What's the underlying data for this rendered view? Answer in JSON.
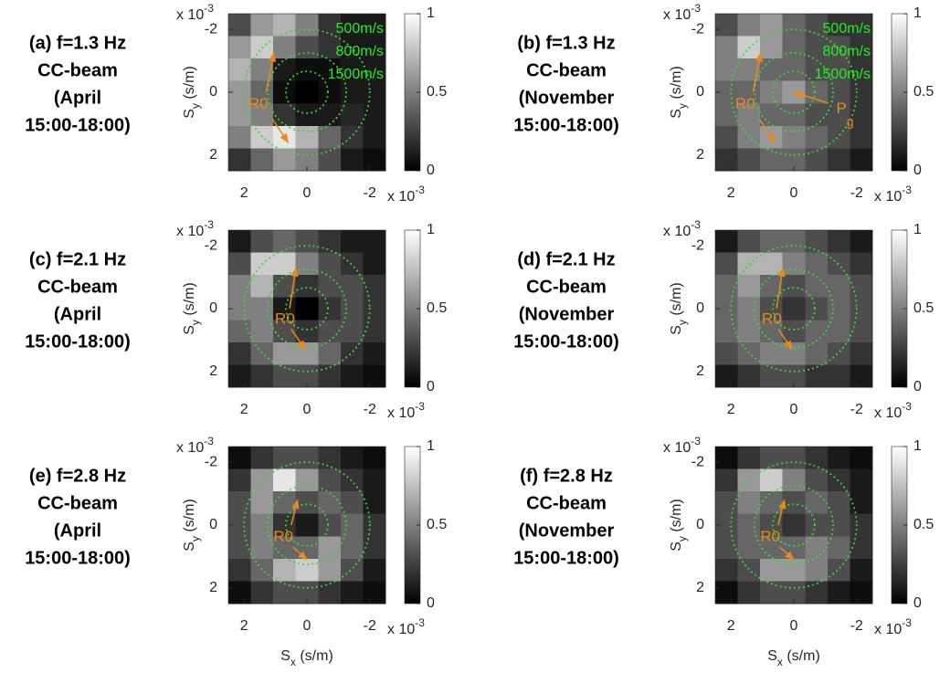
{
  "chart_data": [
    {
      "type": "heatmap",
      "title": [
        "(a) f=1.3 Hz",
        "CC-beam",
        "(April",
        "15:00-18:00)"
      ],
      "z": [
        [
          0.3,
          0.6,
          0.7,
          0.5,
          0.2,
          0.1,
          0.1
        ],
        [
          0.6,
          0.8,
          0.5,
          0.3,
          0.2,
          0.1,
          0.1
        ],
        [
          0.7,
          0.5,
          0.1,
          0.05,
          0.05,
          0.1,
          0.1
        ],
        [
          0.6,
          0.4,
          0.05,
          0.0,
          0.05,
          0.1,
          0.1
        ],
        [
          0.6,
          0.5,
          0.2,
          0.1,
          0.1,
          0.15,
          0.1
        ],
        [
          0.5,
          0.8,
          0.9,
          0.7,
          0.4,
          0.2,
          0.1
        ],
        [
          0.2,
          0.4,
          0.6,
          0.5,
          0.3,
          0.1,
          0.05
        ]
      ],
      "clim": [
        0,
        1
      ],
      "cticks": [
        0,
        0.5,
        1
      ],
      "xlim": [
        2.5,
        -2.5
      ],
      "ylim": [
        -2.5,
        2.5
      ],
      "xticks": [
        2,
        0,
        -2
      ],
      "yticks": [
        -2,
        0,
        2
      ],
      "x_exponent": [
        "x 10",
        "-3"
      ],
      "y_exponent": [
        "x 10",
        "-3"
      ],
      "ylabel": [
        "S",
        "y",
        " (s/m)"
      ],
      "circles": [
        500,
        800,
        1500
      ],
      "circle_labels": [
        "500m/s",
        "800m/s",
        "1500m/s"
      ],
      "annotations": [
        {
          "text": "R0"
        }
      ]
    },
    {
      "type": "heatmap",
      "title": [
        "(b) f=1.3 Hz",
        "CC-beam",
        "(November",
        "15:00-18:00)"
      ],
      "z": [
        [
          0.3,
          0.5,
          0.6,
          0.4,
          0.3,
          0.2,
          0.2
        ],
        [
          0.5,
          0.8,
          0.6,
          0.4,
          0.3,
          0.3,
          0.2
        ],
        [
          0.5,
          0.5,
          0.4,
          0.4,
          0.3,
          0.3,
          0.2
        ],
        [
          0.4,
          0.4,
          0.5,
          0.6,
          0.4,
          0.3,
          0.2
        ],
        [
          0.4,
          0.5,
          0.4,
          0.4,
          0.3,
          0.3,
          0.2
        ],
        [
          0.3,
          0.5,
          0.6,
          0.5,
          0.4,
          0.3,
          0.2
        ],
        [
          0.2,
          0.3,
          0.4,
          0.4,
          0.3,
          0.2,
          0.1
        ]
      ],
      "clim": [
        0,
        1
      ],
      "cticks": [
        0,
        0.5,
        1
      ],
      "xlim": [
        2.5,
        -2.5
      ],
      "ylim": [
        -2.5,
        2.5
      ],
      "xticks": [
        2,
        0,
        -2
      ],
      "yticks": [
        -2,
        0,
        2
      ],
      "x_exponent": [
        "x 10",
        "-3"
      ],
      "y_exponent": [
        "x 10",
        "-3"
      ],
      "ylabel": [
        "S",
        "y",
        " (s/m)"
      ],
      "circles": [
        500,
        800,
        1500
      ],
      "circle_labels": [
        "500m/s",
        "800m/s",
        "1500m/s"
      ],
      "annotations": [
        {
          "text": "R0"
        },
        {
          "text": "P",
          "sub": "g"
        }
      ]
    },
    {
      "type": "heatmap",
      "title": [
        "(c) f=2.1 Hz",
        "CC-beam",
        "(April",
        "15:00-18:00)"
      ],
      "z": [
        [
          0.1,
          0.3,
          0.4,
          0.3,
          0.2,
          0.1,
          0.1
        ],
        [
          0.3,
          0.8,
          0.8,
          0.5,
          0.3,
          0.2,
          0.1
        ],
        [
          0.5,
          0.7,
          0.3,
          0.2,
          0.3,
          0.3,
          0.2
        ],
        [
          0.5,
          0.5,
          0.1,
          0.0,
          0.2,
          0.3,
          0.2
        ],
        [
          0.4,
          0.5,
          0.3,
          0.2,
          0.3,
          0.3,
          0.2
        ],
        [
          0.2,
          0.4,
          0.6,
          0.6,
          0.4,
          0.2,
          0.1
        ],
        [
          0.1,
          0.2,
          0.3,
          0.3,
          0.2,
          0.1,
          0.05
        ]
      ],
      "clim": [
        0,
        1
      ],
      "cticks": [
        0,
        0.5,
        1
      ],
      "xlim": [
        2.5,
        -2.5
      ],
      "ylim": [
        -2.5,
        2.5
      ],
      "xticks": [
        2,
        0,
        -2
      ],
      "yticks": [
        -2,
        0,
        2
      ],
      "x_exponent": [
        "x 10",
        "-3"
      ],
      "y_exponent": [
        "x 10",
        "-3"
      ],
      "ylabel": [
        "S",
        "y",
        " (s/m)"
      ],
      "circles": [
        500,
        800,
        1500
      ],
      "annotations": [
        {
          "text": "R0"
        }
      ]
    },
    {
      "type": "heatmap",
      "title": [
        "(d) f=2.1 Hz",
        "CC-beam",
        "(November",
        "15:00-18:00)"
      ],
      "z": [
        [
          0.1,
          0.3,
          0.4,
          0.4,
          0.3,
          0.2,
          0.1
        ],
        [
          0.3,
          0.7,
          0.7,
          0.5,
          0.4,
          0.3,
          0.2
        ],
        [
          0.4,
          0.6,
          0.4,
          0.3,
          0.4,
          0.4,
          0.3
        ],
        [
          0.4,
          0.5,
          0.3,
          0.2,
          0.3,
          0.4,
          0.3
        ],
        [
          0.4,
          0.5,
          0.4,
          0.3,
          0.4,
          0.4,
          0.3
        ],
        [
          0.3,
          0.4,
          0.5,
          0.5,
          0.4,
          0.3,
          0.2
        ],
        [
          0.1,
          0.2,
          0.3,
          0.3,
          0.2,
          0.2,
          0.1
        ]
      ],
      "clim": [
        0,
        1
      ],
      "cticks": [
        0,
        0.5,
        1
      ],
      "xlim": [
        2.5,
        -2.5
      ],
      "ylim": [
        -2.5,
        2.5
      ],
      "xticks": [
        2,
        0,
        -2
      ],
      "yticks": [
        -2,
        0,
        2
      ],
      "x_exponent": [
        "x 10",
        "-3"
      ],
      "y_exponent": [
        "x 10",
        "-3"
      ],
      "ylabel": [
        "S",
        "y",
        " (s/m)"
      ],
      "circles": [
        500,
        800,
        1500
      ],
      "annotations": [
        {
          "text": "R0"
        }
      ]
    },
    {
      "type": "heatmap",
      "title": [
        "(e) f=2.8 Hz",
        "CC-beam",
        "(April",
        "15:00-18:00)"
      ],
      "z": [
        [
          0.05,
          0.2,
          0.3,
          0.3,
          0.2,
          0.1,
          0.05
        ],
        [
          0.2,
          0.6,
          0.9,
          0.6,
          0.3,
          0.2,
          0.1
        ],
        [
          0.3,
          0.6,
          0.4,
          0.3,
          0.4,
          0.3,
          0.1
        ],
        [
          0.3,
          0.5,
          0.2,
          0.1,
          0.3,
          0.4,
          0.2
        ],
        [
          0.3,
          0.5,
          0.4,
          0.4,
          0.6,
          0.4,
          0.2
        ],
        [
          0.2,
          0.4,
          0.7,
          0.8,
          0.6,
          0.3,
          0.1
        ],
        [
          0.05,
          0.2,
          0.3,
          0.3,
          0.2,
          0.1,
          0.05
        ]
      ],
      "clim": [
        0,
        1
      ],
      "cticks": [
        0,
        0.5,
        1
      ],
      "xlim": [
        2.5,
        -2.5
      ],
      "ylim": [
        -2.5,
        2.5
      ],
      "xticks": [
        2,
        0,
        -2
      ],
      "yticks": [
        -2,
        0,
        2
      ],
      "x_exponent": [
        "x 10",
        "-3"
      ],
      "y_exponent": [
        "x 10",
        "-3"
      ],
      "ylabel": [
        "S",
        "y",
        " (s/m)"
      ],
      "xlabel": [
        "S",
        "x",
        " (s/m)"
      ],
      "circles": [
        500,
        800,
        1500
      ],
      "annotations": [
        {
          "text": "R0"
        }
      ]
    },
    {
      "type": "heatmap",
      "title": [
        "(f) f=2.8 Hz",
        "CC-beam",
        "(November",
        "15:00-18:00)"
      ],
      "z": [
        [
          0.05,
          0.2,
          0.3,
          0.3,
          0.2,
          0.1,
          0.05
        ],
        [
          0.2,
          0.6,
          0.8,
          0.5,
          0.3,
          0.2,
          0.1
        ],
        [
          0.3,
          0.5,
          0.4,
          0.3,
          0.4,
          0.3,
          0.1
        ],
        [
          0.3,
          0.4,
          0.3,
          0.2,
          0.3,
          0.3,
          0.2
        ],
        [
          0.3,
          0.4,
          0.4,
          0.4,
          0.5,
          0.4,
          0.2
        ],
        [
          0.2,
          0.3,
          0.6,
          0.6,
          0.5,
          0.3,
          0.1
        ],
        [
          0.05,
          0.2,
          0.3,
          0.3,
          0.2,
          0.1,
          0.05
        ]
      ],
      "clim": [
        0,
        1
      ],
      "cticks": [
        0,
        0.5,
        1
      ],
      "xlim": [
        2.5,
        -2.5
      ],
      "ylim": [
        -2.5,
        2.5
      ],
      "xticks": [
        2,
        0,
        -2
      ],
      "yticks": [
        -2,
        0,
        2
      ],
      "x_exponent": [
        "x 10",
        "-3"
      ],
      "y_exponent": [
        "x 10",
        "-3"
      ],
      "ylabel": [
        "S",
        "y",
        " (s/m)"
      ],
      "xlabel": [
        "S",
        "x",
        " (s/m)"
      ],
      "circles": [
        500,
        800,
        1500
      ],
      "annotations": [
        {
          "text": "R0"
        }
      ]
    }
  ]
}
